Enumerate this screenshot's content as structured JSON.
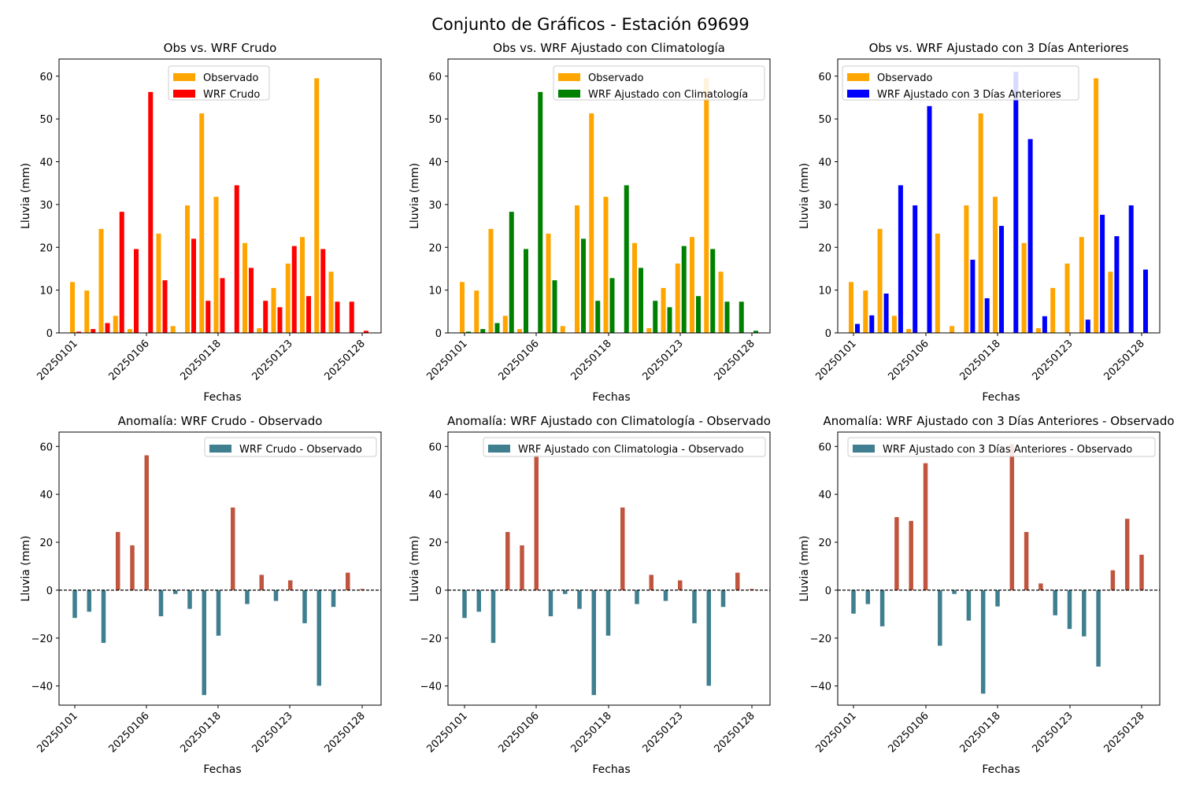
{
  "figure": {
    "title": "Conjunto de Gráficos - Estación 69699"
  },
  "colors": {
    "observado": "#ffa500",
    "crudo": "#ff0000",
    "climatologia": "#008000",
    "tres_dias": "#0000ff",
    "anomaly_negative": "#3f7f8f",
    "anomaly_positive": "#c0553f"
  },
  "chart_data": [
    {
      "id": "top1",
      "type": "bar",
      "title": "Obs vs. WRF Crudo",
      "xlabel": "Fechas",
      "ylabel": "Lluvia (mm)",
      "ylim": [
        0,
        64
      ],
      "yticks": [
        0,
        10,
        20,
        30,
        40,
        50,
        60
      ],
      "xticklabels": [
        "20250101",
        "20250106",
        "20250118",
        "20250123",
        "20250128"
      ],
      "legend": "top-center",
      "series": [
        {
          "name": "Observado",
          "values": [
            11.9,
            9.9,
            24.3,
            4.0,
            0.9,
            0.0,
            23.2,
            1.6,
            29.8,
            51.3,
            31.8,
            0.0,
            21.0,
            1.1,
            10.5,
            16.2,
            22.4,
            59.5,
            14.3,
            0.0,
            0.0
          ]
        },
        {
          "name": "WRF Crudo",
          "values": [
            0.3,
            0.9,
            2.3,
            28.3,
            19.6,
            56.3,
            12.3,
            0.0,
            22.0,
            7.5,
            12.8,
            34.5,
            15.2,
            7.5,
            6.0,
            20.3,
            8.6,
            19.6,
            7.3,
            7.3,
            0.5
          ]
        }
      ]
    },
    {
      "id": "top2",
      "type": "bar",
      "title": "Obs vs. WRF Ajustado con Climatología",
      "xlabel": "Fechas",
      "ylabel": "Lluvia (mm)",
      "ylim": [
        0,
        64
      ],
      "yticks": [
        0,
        10,
        20,
        30,
        40,
        50,
        60
      ],
      "xticklabels": [
        "20250101",
        "20250106",
        "20250118",
        "20250123",
        "20250128"
      ],
      "legend": "top-right",
      "series": [
        {
          "name": "Observado",
          "values": [
            11.9,
            9.9,
            24.3,
            4.0,
            0.9,
            0.0,
            23.2,
            1.6,
            29.8,
            51.3,
            31.8,
            0.0,
            21.0,
            1.1,
            10.5,
            16.2,
            22.4,
            59.5,
            14.3,
            0.0,
            0.0
          ]
        },
        {
          "name": "WRF Ajustado con Climatología",
          "values": [
            0.3,
            0.9,
            2.3,
            28.3,
            19.6,
            56.3,
            12.3,
            0.0,
            22.0,
            7.5,
            12.8,
            34.5,
            15.2,
            7.5,
            6.0,
            20.3,
            8.6,
            19.6,
            7.3,
            7.3,
            0.5
          ]
        }
      ]
    },
    {
      "id": "top3",
      "type": "bar",
      "title": "Obs vs. WRF Ajustado con 3 Días Anteriores",
      "xlabel": "Fechas",
      "ylabel": "Lluvia (mm)",
      "ylim": [
        0,
        64
      ],
      "yticks": [
        0,
        10,
        20,
        30,
        40,
        50,
        60
      ],
      "xticklabels": [
        "20250101",
        "20250106",
        "20250118",
        "20250123",
        "20250128"
      ],
      "legend": "top-left",
      "series": [
        {
          "name": "Observado",
          "values": [
            11.9,
            9.9,
            24.3,
            4.0,
            0.9,
            0.0,
            23.2,
            1.6,
            29.8,
            51.3,
            31.8,
            0.0,
            21.0,
            1.1,
            10.5,
            16.2,
            22.4,
            59.5,
            14.3,
            0.0,
            0.0
          ]
        },
        {
          "name": "WRF Ajustado con 3 Días Anteriores",
          "values": [
            2.1,
            4.1,
            9.2,
            34.5,
            29.8,
            53.0,
            0.0,
            0.0,
            17.1,
            8.1,
            25.0,
            61.0,
            45.3,
            3.9,
            0.0,
            0.0,
            3.1,
            27.6,
            22.6,
            29.8,
            14.8
          ]
        }
      ]
    },
    {
      "id": "bot1",
      "type": "bar",
      "title": "Anomalía: WRF Crudo - Observado",
      "xlabel": "Fechas",
      "ylabel": "Lluvia (mm)",
      "ylim": [
        -48,
        66
      ],
      "yticks": [
        -40,
        -20,
        0,
        20,
        40,
        60
      ],
      "xticklabels": [
        "20250101",
        "20250106",
        "20250118",
        "20250123",
        "20250128"
      ],
      "legend": "top-right",
      "series": [
        {
          "name": "WRF Crudo - Observado",
          "values": [
            -11.6,
            -9.0,
            -22.0,
            24.3,
            18.7,
            56.3,
            -10.9,
            -1.6,
            -7.8,
            -43.8,
            -19.0,
            34.5,
            -5.8,
            6.4,
            -4.5,
            4.1,
            -13.8,
            -39.9,
            -7.0,
            7.3,
            0.5
          ]
        }
      ]
    },
    {
      "id": "bot2",
      "type": "bar",
      "title": "Anomalía: WRF Ajustado con Climatología - Observado",
      "xlabel": "Fechas",
      "ylabel": "Lluvia (mm)",
      "ylim": [
        -48,
        66
      ],
      "yticks": [
        -40,
        -20,
        0,
        20,
        40,
        60
      ],
      "xticklabels": [
        "20250101",
        "20250106",
        "20250118",
        "20250123",
        "20250128"
      ],
      "legend": "top-right",
      "series": [
        {
          "name": "WRF Ajustado con Climatologia - Observado",
          "values": [
            -11.6,
            -9.0,
            -22.0,
            24.3,
            18.7,
            56.3,
            -10.9,
            -1.6,
            -7.8,
            -43.8,
            -19.0,
            34.5,
            -5.8,
            6.4,
            -4.5,
            4.1,
            -13.8,
            -39.9,
            -7.0,
            7.3,
            0.5
          ]
        }
      ]
    },
    {
      "id": "bot3",
      "type": "bar",
      "title": "Anomalía: WRF Ajustado con 3 Días Anteriores - Observado",
      "xlabel": "Fechas",
      "ylabel": "Lluvia (mm)",
      "ylim": [
        -48,
        66
      ],
      "yticks": [
        -40,
        -20,
        0,
        20,
        40,
        60
      ],
      "xticklabels": [
        "20250101",
        "20250106",
        "20250118",
        "20250123",
        "20250128"
      ],
      "legend": "top-right",
      "series": [
        {
          "name": "WRF Ajustado con 3 Días Anteriores - Observado",
          "values": [
            -9.8,
            -5.8,
            -15.1,
            30.5,
            28.9,
            53.0,
            -23.2,
            -1.6,
            -12.7,
            -43.2,
            -6.8,
            61.0,
            24.3,
            2.8,
            -10.5,
            -16.2,
            -19.3,
            -31.9,
            8.3,
            29.8,
            14.8
          ]
        }
      ]
    }
  ]
}
